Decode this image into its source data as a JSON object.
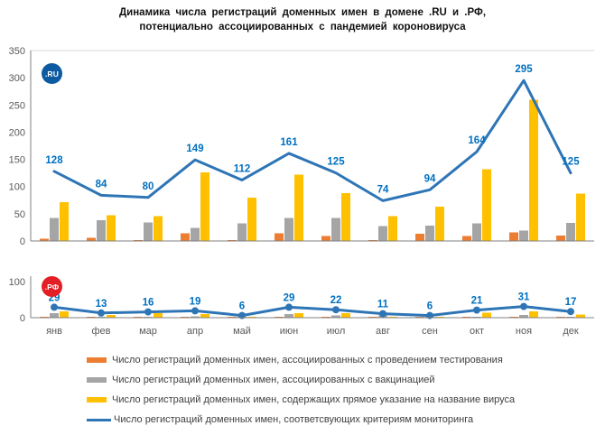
{
  "title": {
    "line1": "Динамика числа регистраций доменных имен в домене .RU и .РФ,",
    "line2": "потенциально ассоциированных с пандемией короновируса"
  },
  "badges": {
    "ru": ".RU",
    "rf": ".РФ"
  },
  "colors": {
    "testing_bar": "#ED7D31",
    "vaccination_bar": "#A5A5A5",
    "virus_name_bar": "#FFC000",
    "monitoring_line": "#2E75B6",
    "data_label": "#0070C0",
    "ru_badge": "#0C5AA0",
    "rf_badge": "#E31E24",
    "axis": "#808080",
    "tick_label": "#595959"
  },
  "chart_data": [
    {
      "type": "bar",
      "zone": ".RU",
      "categories": [
        "янв",
        "фев",
        "мар",
        "апр",
        "май",
        "июн",
        "июл",
        "авг",
        "сен",
        "окт",
        "ноя",
        "дек"
      ],
      "ylim": [
        0,
        350
      ],
      "y_ticks": [
        0,
        50,
        100,
        150,
        200,
        250,
        300,
        350
      ],
      "grid": false,
      "legend_position": "none",
      "series": [
        {
          "name": "Число регистраций доменных имен, ассоциированных с проведением тестирования",
          "type": "bar",
          "color": "#ED7D31",
          "values": [
            4,
            6,
            1,
            14,
            1,
            14,
            9,
            2,
            13,
            9,
            16,
            10
          ]
        },
        {
          "name": "Число регистраций доменных имен, ассоциированных с вакцинацией",
          "type": "bar",
          "color": "#A5A5A5",
          "values": [
            42,
            38,
            34,
            24,
            32,
            42,
            42,
            27,
            28,
            32,
            19,
            33
          ]
        },
        {
          "name": "Число регистраций доменных имен, содержащих прямое указание на название вируса",
          "type": "bar",
          "color": "#FFC000",
          "values": [
            71,
            47,
            46,
            126,
            80,
            122,
            88,
            46,
            63,
            132,
            260,
            87
          ]
        },
        {
          "name": "Число регистраций доменных имен, соответсвующих критериям мониторинга",
          "type": "line",
          "color": "#2E75B6",
          "data_labels": true,
          "markers": false,
          "values": [
            128,
            84,
            80,
            149,
            112,
            161,
            125,
            74,
            94,
            164,
            295,
            125
          ]
        }
      ]
    },
    {
      "type": "bar",
      "zone": ".РФ",
      "categories": [
        "янв",
        "фев",
        "мар",
        "апр",
        "май",
        "июн",
        "июл",
        "авг",
        "сен",
        "окт",
        "ноя",
        "дек"
      ],
      "ylim": [
        0,
        100
      ],
      "y_ticks": [
        0,
        100
      ],
      "grid": false,
      "legend_position": "bottom",
      "series": [
        {
          "name": "Число регистраций доменных имен, ассоциированных с проведением тестирования",
          "type": "bar",
          "color": "#ED7D31",
          "values": [
            2,
            2,
            2,
            2,
            1,
            3,
            2,
            1,
            2,
            2,
            2,
            2
          ]
        },
        {
          "name": "Число регистраций доменных имен, ассоциированных с вакцинацией",
          "type": "bar",
          "color": "#A5A5A5",
          "values": [
            12,
            3,
            2,
            4,
            1,
            10,
            6,
            6,
            1,
            3,
            7,
            2
          ]
        },
        {
          "name": "Число регистраций доменных имен, содержащих прямое указание на название вируса",
          "type": "bar",
          "color": "#FFC000",
          "values": [
            18,
            7,
            12,
            10,
            3,
            13,
            12,
            3,
            2,
            14,
            18,
            9
          ]
        },
        {
          "name": "Число регистраций доменных имен, соответсвующих критериям мониторинга",
          "type": "line",
          "color": "#2E75B6",
          "data_labels": true,
          "markers": true,
          "values": [
            29,
            13,
            16,
            19,
            6,
            29,
            22,
            11,
            6,
            21,
            31,
            17
          ]
        }
      ]
    }
  ],
  "legend": {
    "items": [
      {
        "label": "Число регистраций доменных имен, ассоциированных с проведением тестирования",
        "swatch": "bar",
        "color": "#ED7D31"
      },
      {
        "label": "Число регистраций доменных имен, ассоциированных с вакцинацией",
        "swatch": "bar",
        "color": "#A5A5A5"
      },
      {
        "label": "Число регистраций доменных имен, содержащих прямое указание на название вируса",
        "swatch": "bar",
        "color": "#FFC000"
      },
      {
        "label": "Число регистраций доменных имен, соответсвующих критериям мониторинга",
        "swatch": "line",
        "color": "#2E75B6"
      }
    ]
  }
}
